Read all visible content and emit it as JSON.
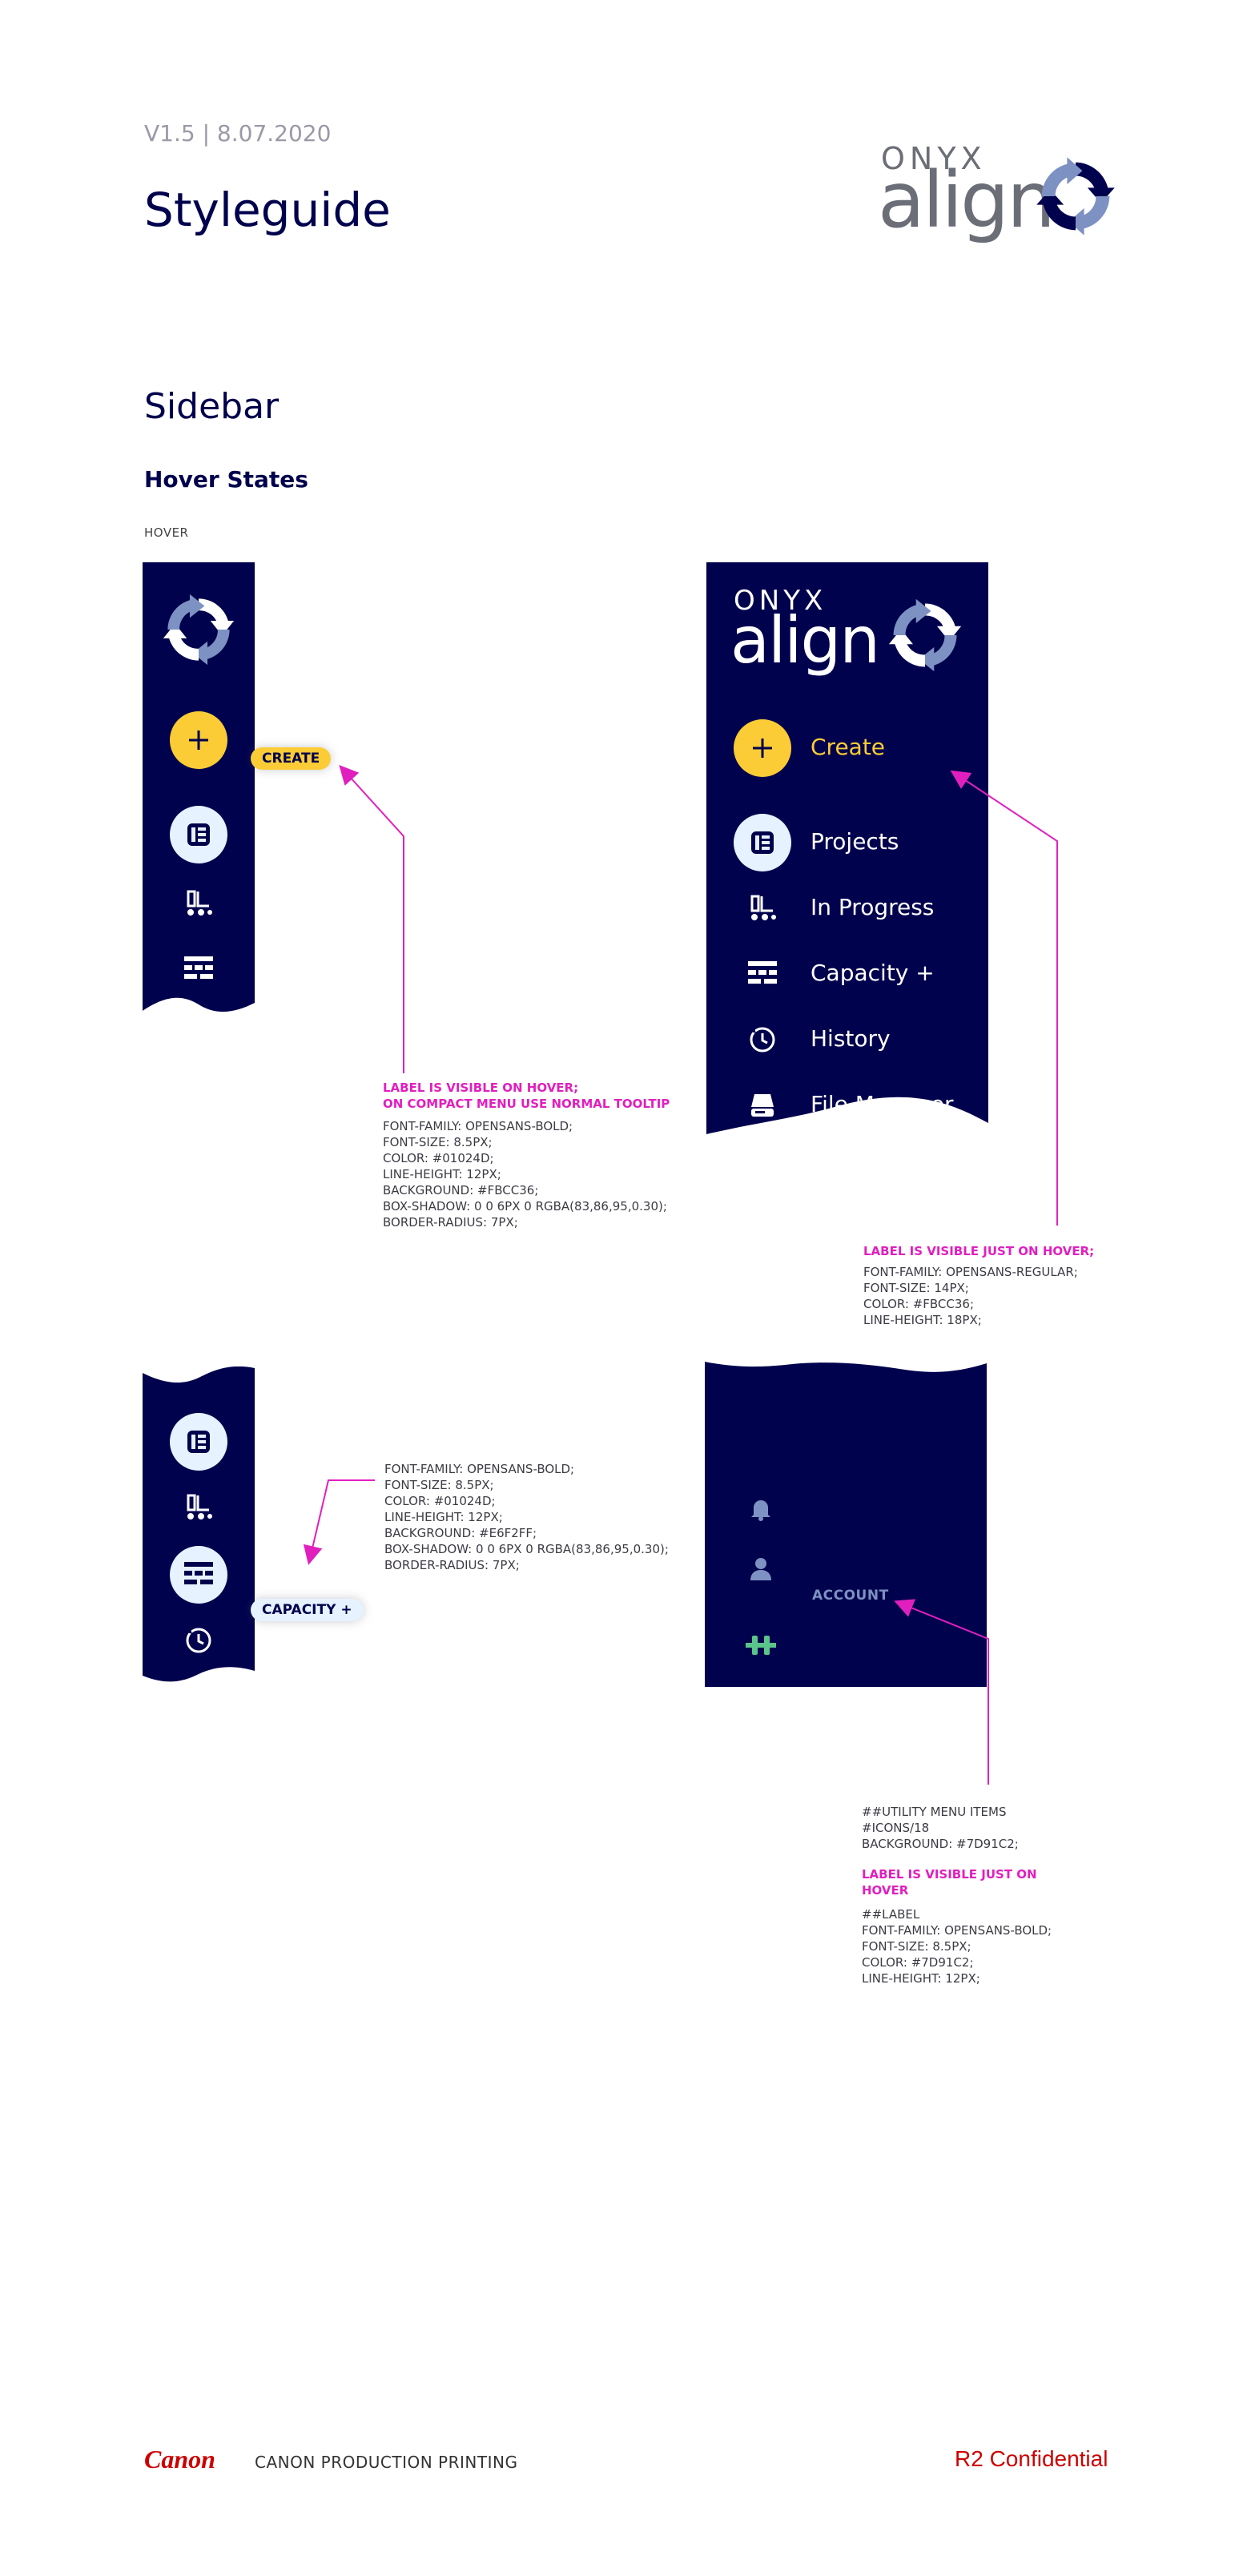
{
  "header": {
    "version": "V1.5 | 8.07.2020",
    "title": "Styleguide",
    "logo_onyx": "ONYX",
    "logo_align": "align"
  },
  "section": {
    "title": "Sidebar",
    "subtitle": "Hover States",
    "caption": "HOVER"
  },
  "compact_top": {
    "tooltip": "CREATE"
  },
  "expanded": {
    "logo_onyx": "ONYX",
    "logo_align": "align",
    "items": [
      {
        "label": "Create",
        "icon": "plus-icon"
      },
      {
        "label": "Projects",
        "icon": "projects-icon"
      },
      {
        "label": "In Progress",
        "icon": "in-progress-icon"
      },
      {
        "label": "Capacity +",
        "icon": "capacity-icon"
      },
      {
        "label": "History",
        "icon": "history-icon"
      },
      {
        "label": "File Manager",
        "icon": "file-manager-icon"
      }
    ]
  },
  "compact_bottom": {
    "tooltip": "CAPACITY +"
  },
  "utility": {
    "account_label": "ACCOUNT"
  },
  "notes": {
    "create_pink": "LABEL IS VISIBLE ON HOVER;\nON COMPACT MENU USE NORMAL TOOLTIP",
    "create_specs": "FONT-FAMILY: OPENSANS-BOLD;\nFONT-SIZE: 8.5PX;\nCOLOR: #01024D;\nLINE-HEIGHT: 12PX;\nBACKGROUND: #FBCC36;\nBOX-SHADOW: 0 0 6PX 0 RGBA(83,86,95,0.30);\nBORDER-RADIUS: 7PX;",
    "expanded_pink": "LABEL IS VISIBLE JUST ON HOVER;",
    "expanded_specs": "FONT-FAMILY: OPENSANS-REGULAR;\nFONT-SIZE: 14PX;\nCOLOR: #FBCC36;\nLINE-HEIGHT: 18PX;",
    "capacity_specs": "FONT-FAMILY: OPENSANS-BOLD;\nFONT-SIZE: 8.5PX;\nCOLOR: #01024D;\nLINE-HEIGHT: 12PX;\nBACKGROUND: #E6F2FF;\nBOX-SHADOW: 0 0 6PX 0 RGBA(83,86,95,0.30);\nBORDER-RADIUS: 7PX;",
    "utility_specs": "##UTILITY MENU ITEMS\n#ICONS/18\nBACKGROUND: #7D91C2;",
    "utility_pink": "LABEL IS VISIBLE JUST ON\nHOVER",
    "utility_label_specs": "##LABEL\nFONT-FAMILY: OPENSANS-BOLD;\nFONT-SIZE: 8.5PX;\nCOLOR: #7D91C2;\nLINE-HEIGHT: 12PX;"
  },
  "footer": {
    "brand": "Canon",
    "company": "CANON PRODUCTION PRINTING",
    "confidential": "R2 Confidential"
  },
  "colors": {
    "navy": "#01024D",
    "yellow": "#FBCC36",
    "light_blue": "#E6F2FF",
    "utility": "#7D91C2",
    "annotation": "#E11FBF",
    "status_green": "#5BC48A"
  }
}
